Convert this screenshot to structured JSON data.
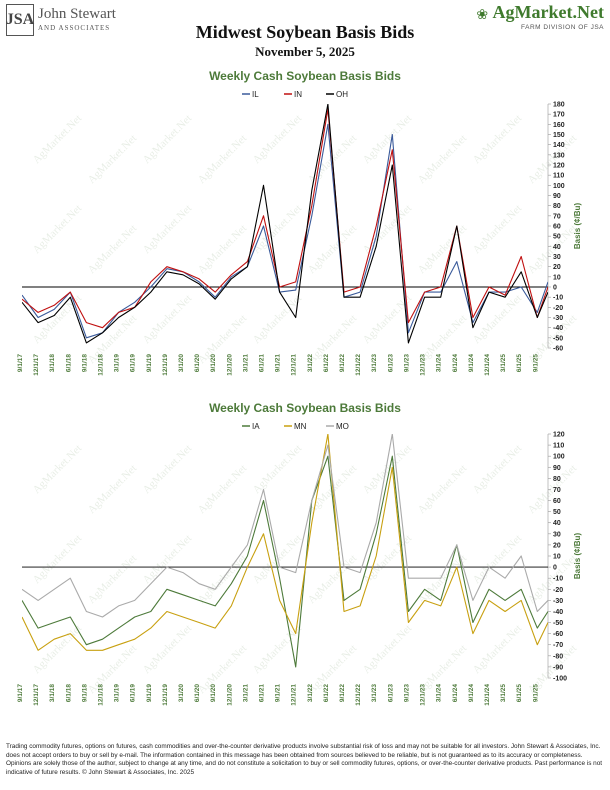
{
  "header": {
    "logo_initials": "JSA",
    "company": "John Stewart",
    "company_sub": "AND ASSOCIATES",
    "brand": "AgMarket.Net",
    "brand_sub": "FARM DIVISION OF JSA",
    "title": "Midwest Soybean Basis Bids",
    "date": "November 5, 2025"
  },
  "watermark": "AgMarket.Net",
  "colors": {
    "IL": "#3a5a9a",
    "IN": "#c01010",
    "OH": "#000000",
    "IA": "#4d7a3a",
    "MN": "#c8a010",
    "MO": "#aaaaaa",
    "title": "#4d7a3a",
    "axis_label": "#4d7a3a"
  },
  "date_ticks": [
    "9/1/17",
    "12/1/17",
    "3/1/18",
    "6/1/18",
    "9/1/18",
    "12/1/18",
    "3/1/19",
    "6/1/19",
    "9/1/19",
    "12/1/19",
    "3/1/20",
    "6/1/20",
    "9/1/20",
    "12/1/20",
    "3/1/21",
    "6/1/21",
    "9/1/21",
    "12/1/21",
    "3/1/22",
    "6/1/22",
    "9/1/22",
    "12/1/22",
    "3/1/23",
    "6/1/23",
    "9/1/23",
    "12/1/23",
    "3/1/24",
    "6/1/24",
    "9/1/24",
    "12/1/24",
    "3/1/25",
    "6/1/25",
    "9/1/25"
  ],
  "chart_data": [
    {
      "type": "line",
      "title": "Weekly Cash Soybean Basis Bids",
      "ylabel": "Basis (¢/Bu)",
      "ylim": [
        -60,
        180
      ],
      "yticks": [
        180,
        170,
        160,
        150,
        140,
        130,
        120,
        110,
        100,
        90,
        80,
        70,
        60,
        50,
        40,
        30,
        20,
        10,
        0,
        -10,
        -20,
        -30,
        -40,
        -50,
        -60
      ],
      "legend_position": "top-center",
      "x": [
        "9/1/17",
        "12/1/17",
        "3/1/18",
        "6/1/18",
        "9/1/18",
        "12/1/18",
        "3/1/19",
        "6/1/19",
        "9/1/19",
        "12/1/19",
        "3/1/20",
        "6/1/20",
        "9/1/20",
        "12/1/20",
        "3/1/21",
        "6/1/21",
        "9/1/21",
        "12/1/21",
        "3/1/22",
        "6/1/22",
        "9/1/22",
        "12/1/22",
        "3/1/23",
        "6/1/23",
        "9/1/23",
        "12/1/23",
        "3/1/24",
        "6/1/24",
        "9/1/24",
        "12/1/24",
        "3/1/25",
        "6/1/25",
        "9/1/25",
        "11/1/25"
      ],
      "series": [
        {
          "name": "IL",
          "values": [
            -8,
            -30,
            -22,
            -5,
            -50,
            -45,
            -25,
            -15,
            0,
            18,
            15,
            5,
            -10,
            10,
            20,
            60,
            -5,
            -3,
            70,
            160,
            -10,
            -5,
            50,
            150,
            -45,
            -5,
            -5,
            25,
            -35,
            -5,
            -5,
            0,
            -25,
            5
          ]
        },
        {
          "name": "IN",
          "values": [
            -12,
            -25,
            -18,
            -5,
            -35,
            -40,
            -25,
            -20,
            5,
            20,
            15,
            8,
            -5,
            12,
            25,
            70,
            0,
            5,
            80,
            175,
            -5,
            0,
            60,
            135,
            -35,
            -5,
            0,
            60,
            -30,
            0,
            -8,
            30,
            -30,
            0
          ]
        },
        {
          "name": "OH",
          "values": [
            -15,
            -35,
            -28,
            -10,
            -55,
            -45,
            -30,
            -20,
            -5,
            15,
            12,
            3,
            -12,
            8,
            20,
            100,
            -5,
            -30,
            95,
            180,
            -10,
            -10,
            40,
            120,
            -55,
            -10,
            -10,
            60,
            -40,
            -5,
            -10,
            15,
            -30,
            -5
          ]
        }
      ]
    },
    {
      "type": "line",
      "title": "Weekly Cash Soybean Basis Bids",
      "ylabel": "Basis (¢/Bu)",
      "ylim": [
        -100,
        120
      ],
      "yticks": [
        120,
        110,
        100,
        90,
        80,
        70,
        60,
        50,
        40,
        30,
        20,
        10,
        0,
        -10,
        -20,
        -30,
        -40,
        -50,
        -60,
        -70,
        -80,
        -90,
        -100
      ],
      "legend_position": "top-center",
      "x": [
        "9/1/17",
        "12/1/17",
        "3/1/18",
        "6/1/18",
        "9/1/18",
        "12/1/18",
        "3/1/19",
        "6/1/19",
        "9/1/19",
        "12/1/19",
        "3/1/20",
        "6/1/20",
        "9/1/20",
        "12/1/20",
        "3/1/21",
        "6/1/21",
        "9/1/21",
        "12/1/21",
        "3/1/22",
        "6/1/22",
        "9/1/22",
        "12/1/22",
        "3/1/23",
        "6/1/23",
        "9/1/23",
        "12/1/23",
        "3/1/24",
        "6/1/24",
        "9/1/24",
        "12/1/24",
        "3/1/25",
        "6/1/25",
        "9/1/25",
        "11/1/25"
      ],
      "series": [
        {
          "name": "IA",
          "values": [
            -30,
            -55,
            -50,
            -45,
            -70,
            -65,
            -55,
            -45,
            -40,
            -20,
            -25,
            -30,
            -35,
            -15,
            10,
            60,
            -10,
            -90,
            60,
            100,
            -30,
            -20,
            30,
            100,
            -40,
            -20,
            -30,
            20,
            -50,
            -20,
            -30,
            -20,
            -55,
            -40
          ]
        },
        {
          "name": "MN",
          "values": [
            -45,
            -75,
            -65,
            -60,
            -75,
            -75,
            -70,
            -65,
            -55,
            -40,
            -45,
            -50,
            -55,
            -35,
            0,
            30,
            -30,
            -60,
            40,
            120,
            -40,
            -35,
            10,
            90,
            -50,
            -30,
            -35,
            0,
            -60,
            -30,
            -40,
            -30,
            -70,
            -50
          ]
        },
        {
          "name": "MO",
          "values": [
            -20,
            -30,
            -20,
            -10,
            -40,
            -45,
            -35,
            -30,
            -15,
            0,
            -5,
            -15,
            -20,
            0,
            20,
            70,
            0,
            -5,
            60,
            110,
            0,
            -5,
            40,
            120,
            -10,
            -10,
            -10,
            20,
            -30,
            0,
            -10,
            10,
            -40,
            -30
          ]
        }
      ]
    }
  ],
  "disclaimer": "Trading commodity futures, options on futures, cash commodities and over-the-counter derivative products involve substantial risk of loss and may not be suitable for all investors. John Stewart & Associates, Inc. does not accept orders to buy or sell by e-mail. The information contained in this message has been obtained from sources believed to be reliable, but is not guaranteed as to its accuracy or completeness. Opinions are solely those of the author, subject to change at any time, and do not constitute a solicitation to buy or sell commodity futures, options, or over-the-counter derivative products. Past performance is not indicative of future results. © John Stewart & Associates, Inc. 2025"
}
